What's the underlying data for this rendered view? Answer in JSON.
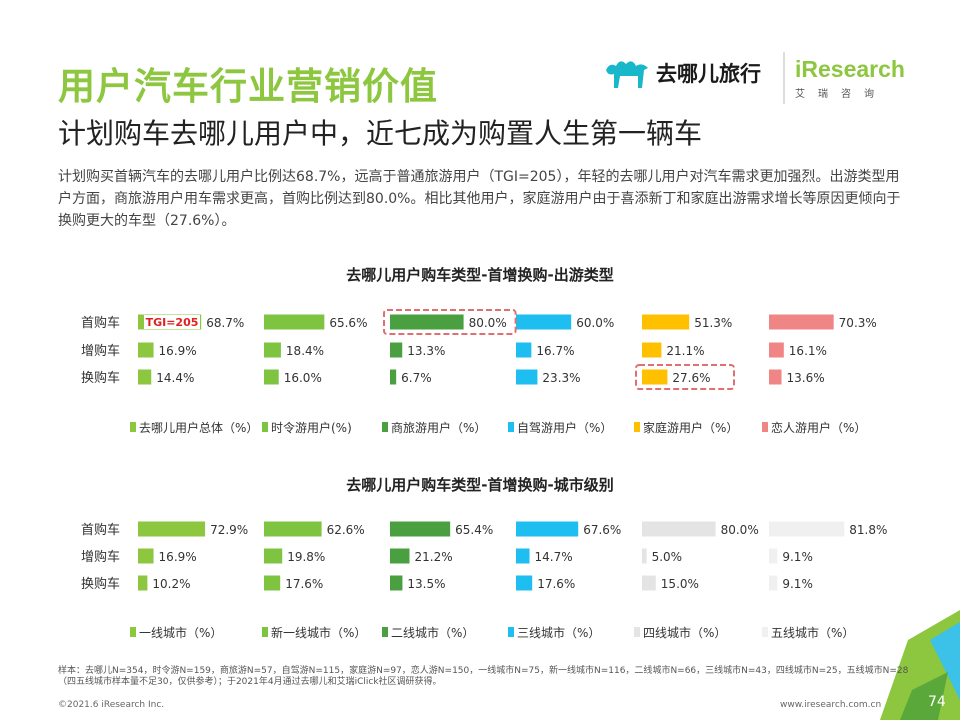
{
  "header": {
    "title": "用户汽车行业营销价值",
    "subtitle": "计划购车去哪儿用户中，近七成为购置人生第一辆车",
    "description": "计划购买首辆汽车的去哪儿用户比例达68.7%，远高于普通旅游用户（TGI=205），年轻的去哪儿用户对汽车需求更加强烈。出游类型用户方面，商旅游用户用车需求更高，首购比例达到80.0%。相比其他用户，家庭游用户由于喜添新丁和家庭出游需求增长等原因更倾向于换购更大的车型（27.6%）。"
  },
  "logos": {
    "qunar": "去哪儿旅行",
    "iresearch": "iResearch",
    "iresearch_cn": "艾瑞咨询"
  },
  "chart_data": [
    {
      "type": "bar",
      "title": "去哪儿用户购车类型-首增换购-出游类型",
      "categories": [
        "首购车",
        "增购车",
        "换购车"
      ],
      "series": [
        {
          "name": "去哪儿用户总体（%）",
          "color": "#8dc63f",
          "values": [
            68.7,
            16.9,
            14.4
          ]
        },
        {
          "name": "时令游用户(%)",
          "color": "#7ec440",
          "values": [
            65.6,
            18.4,
            16.0
          ]
        },
        {
          "name": "商旅游用户（%）",
          "color": "#4aa040",
          "values": [
            80.0,
            13.3,
            6.7
          ]
        },
        {
          "name": "自驾游用户（%）",
          "color": "#1fbef0",
          "values": [
            60.0,
            16.7,
            23.3
          ]
        },
        {
          "name": "家庭游用户（%）",
          "color": "#ffc000",
          "values": [
            51.3,
            21.1,
            27.6
          ]
        },
        {
          "name": "恋人游用户（%）",
          "color": "#f08585",
          "values": [
            70.3,
            16.1,
            13.6
          ]
        }
      ],
      "labels": [
        [
          "68.7%",
          "16.9%",
          "14.4%"
        ],
        [
          "65.6%",
          "18.4%",
          "16.0%"
        ],
        [
          "80.0%",
          "13.3%",
          "6.7%"
        ],
        [
          "60.0%",
          "16.7%",
          "23.3%"
        ],
        [
          "51.3%",
          "21.1%",
          "27.6%"
        ],
        [
          "70.3%",
          "16.1%",
          "13.6%"
        ]
      ],
      "annotation": "TGI=205",
      "highlights": [
        [
          2,
          0
        ],
        [
          4,
          2
        ]
      ]
    },
    {
      "type": "bar",
      "title": "去哪儿用户购车类型-首增换购-城市级别",
      "categories": [
        "首购车",
        "增购车",
        "换购车"
      ],
      "series": [
        {
          "name": "一线城市（%）",
          "color": "#8dc63f",
          "values": [
            72.9,
            16.9,
            10.2
          ]
        },
        {
          "name": "新一线城市（%）",
          "color": "#7ec440",
          "values": [
            62.6,
            19.8,
            17.6
          ]
        },
        {
          "name": "二线城市（%）",
          "color": "#4aa040",
          "values": [
            65.4,
            21.2,
            13.5
          ]
        },
        {
          "name": "三线城市（%）",
          "color": "#1fbef0",
          "values": [
            67.6,
            14.7,
            17.6
          ]
        },
        {
          "name": "四线城市（%）",
          "color": "#e4e4e4",
          "values": [
            80.0,
            5.0,
            15.0
          ]
        },
        {
          "name": "五线城市（%）",
          "color": "#f0f0f0",
          "values": [
            81.8,
            9.1,
            9.1
          ]
        }
      ],
      "labels": [
        [
          "72.9%",
          "16.9%",
          "10.2%"
        ],
        [
          "62.6%",
          "19.8%",
          "17.6%"
        ],
        [
          "65.4%",
          "21.2%",
          "13.5%"
        ],
        [
          "67.6%",
          "14.7%",
          "17.6%"
        ],
        [
          "80.0%",
          "5.0%",
          "15.0%"
        ],
        [
          "81.8%",
          "9.1%",
          "9.1%"
        ]
      ]
    }
  ],
  "footer": {
    "note": "样本：去哪儿N=354，时令游N=159，商旅游N=57，自驾游N=115，家庭游N=97，恋人游N=150，一线城市N=75，新一线城市N=116，二线城市N=66，三线城市N=43，四线城市N=25，五线城市N=28（四五线城市样本量不足30，仅供参考）；于2021年4月通过去哪儿和艾瑞iClick社区调研获得。",
    "copyright": "©2021.6 iResearch Inc.",
    "website": "www.iresearch.com.cn",
    "page": "74"
  }
}
